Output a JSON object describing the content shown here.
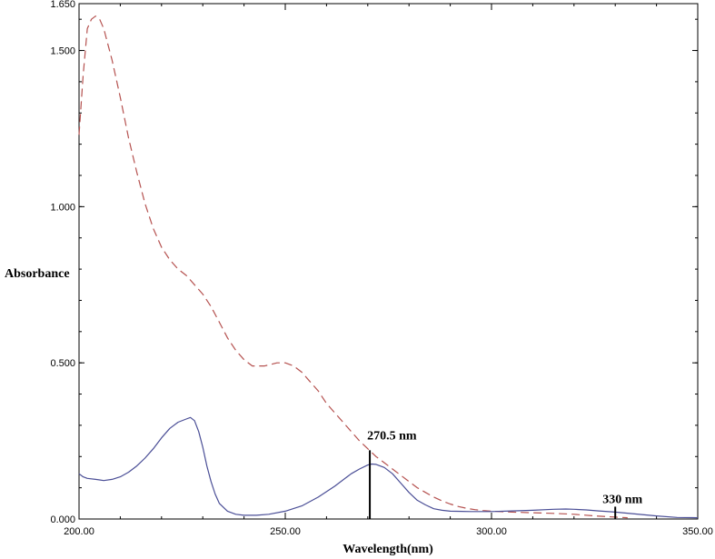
{
  "chart_data": {
    "type": "line",
    "title": "",
    "xlabel": "Wavelength(nm)",
    "ylabel": "Absorbance",
    "xlim": [
      200,
      350
    ],
    "ylim": [
      0,
      1.65
    ],
    "x_ticks": [
      {
        "value": 200,
        "label": "200.00"
      },
      {
        "value": 250,
        "label": "250.00"
      },
      {
        "value": 300,
        "label": "300.00"
      },
      {
        "value": 350,
        "label": "350.00"
      }
    ],
    "y_ticks": [
      {
        "value": 0,
        "label": "0.000"
      },
      {
        "value": 0.5,
        "label": "0.500"
      },
      {
        "value": 1.0,
        "label": "1.000"
      },
      {
        "value": 1.5,
        "label": "1.500"
      },
      {
        "value": 1.65,
        "label": "1.650"
      }
    ],
    "grid": false,
    "series": [
      {
        "style": "dashed",
        "color": "#b5514f",
        "points": [
          [
            200,
            1.23
          ],
          [
            201,
            1.42
          ],
          [
            202,
            1.57
          ],
          [
            203,
            1.6
          ],
          [
            204,
            1.61
          ],
          [
            205,
            1.6
          ],
          [
            206,
            1.57
          ],
          [
            208,
            1.47
          ],
          [
            210,
            1.35
          ],
          [
            212,
            1.22
          ],
          [
            214,
            1.11
          ],
          [
            216,
            1.01
          ],
          [
            218,
            0.93
          ],
          [
            220,
            0.87
          ],
          [
            222,
            0.83
          ],
          [
            224,
            0.8
          ],
          [
            226,
            0.78
          ],
          [
            228,
            0.75
          ],
          [
            230,
            0.72
          ],
          [
            232,
            0.68
          ],
          [
            234,
            0.63
          ],
          [
            236,
            0.58
          ],
          [
            238,
            0.54
          ],
          [
            240,
            0.51
          ],
          [
            242,
            0.49
          ],
          [
            245,
            0.49
          ],
          [
            248,
            0.5
          ],
          [
            250,
            0.5
          ],
          [
            252,
            0.49
          ],
          [
            254,
            0.47
          ],
          [
            256,
            0.44
          ],
          [
            258,
            0.41
          ],
          [
            260,
            0.37
          ],
          [
            262,
            0.34
          ],
          [
            264,
            0.31
          ],
          [
            266,
            0.28
          ],
          [
            268,
            0.25
          ],
          [
            270,
            0.225
          ],
          [
            272,
            0.2
          ],
          [
            274,
            0.18
          ],
          [
            276,
            0.16
          ],
          [
            278,
            0.14
          ],
          [
            280,
            0.12
          ],
          [
            282,
            0.1
          ],
          [
            284,
            0.085
          ],
          [
            286,
            0.07
          ],
          [
            288,
            0.058
          ],
          [
            290,
            0.048
          ],
          [
            292,
            0.04
          ],
          [
            294,
            0.034
          ],
          [
            296,
            0.03
          ],
          [
            298,
            0.027
          ],
          [
            300,
            0.025
          ],
          [
            305,
            0.022
          ],
          [
            310,
            0.02
          ],
          [
            315,
            0.018
          ],
          [
            320,
            0.015
          ],
          [
            325,
            0.01
          ],
          [
            330,
            0.006
          ],
          [
            333,
            0.004
          ]
        ]
      },
      {
        "style": "solid",
        "color": "#4a4e96",
        "points": [
          [
            200,
            0.145
          ],
          [
            201,
            0.135
          ],
          [
            202,
            0.13
          ],
          [
            204,
            0.127
          ],
          [
            205,
            0.125
          ],
          [
            206,
            0.123
          ],
          [
            208,
            0.127
          ],
          [
            210,
            0.135
          ],
          [
            212,
            0.15
          ],
          [
            214,
            0.17
          ],
          [
            216,
            0.195
          ],
          [
            218,
            0.225
          ],
          [
            220,
            0.26
          ],
          [
            222,
            0.29
          ],
          [
            224,
            0.31
          ],
          [
            226,
            0.32
          ],
          [
            227,
            0.325
          ],
          [
            228,
            0.315
          ],
          [
            229,
            0.28
          ],
          [
            230,
            0.23
          ],
          [
            231,
            0.17
          ],
          [
            232,
            0.12
          ],
          [
            233,
            0.08
          ],
          [
            234,
            0.05
          ],
          [
            236,
            0.025
          ],
          [
            238,
            0.015
          ],
          [
            240,
            0.012
          ],
          [
            243,
            0.012
          ],
          [
            246,
            0.015
          ],
          [
            250,
            0.025
          ],
          [
            254,
            0.042
          ],
          [
            258,
            0.07
          ],
          [
            262,
            0.105
          ],
          [
            266,
            0.145
          ],
          [
            268,
            0.16
          ],
          [
            270,
            0.173
          ],
          [
            271,
            0.176
          ],
          [
            272,
            0.175
          ],
          [
            274,
            0.165
          ],
          [
            276,
            0.145
          ],
          [
            278,
            0.115
          ],
          [
            280,
            0.085
          ],
          [
            282,
            0.06
          ],
          [
            284,
            0.045
          ],
          [
            286,
            0.033
          ],
          [
            288,
            0.028
          ],
          [
            290,
            0.025
          ],
          [
            295,
            0.024
          ],
          [
            300,
            0.024
          ],
          [
            305,
            0.026
          ],
          [
            310,
            0.028
          ],
          [
            315,
            0.031
          ],
          [
            318,
            0.032
          ],
          [
            320,
            0.031
          ],
          [
            323,
            0.029
          ],
          [
            326,
            0.026
          ],
          [
            330,
            0.022
          ],
          [
            335,
            0.016
          ],
          [
            340,
            0.01
          ],
          [
            345,
            0.005
          ],
          [
            350,
            0.004
          ]
        ]
      }
    ],
    "annotations": [
      {
        "x": 270.5,
        "label": "270.5 nm"
      },
      {
        "x": 330,
        "label": "330 nm"
      }
    ]
  }
}
